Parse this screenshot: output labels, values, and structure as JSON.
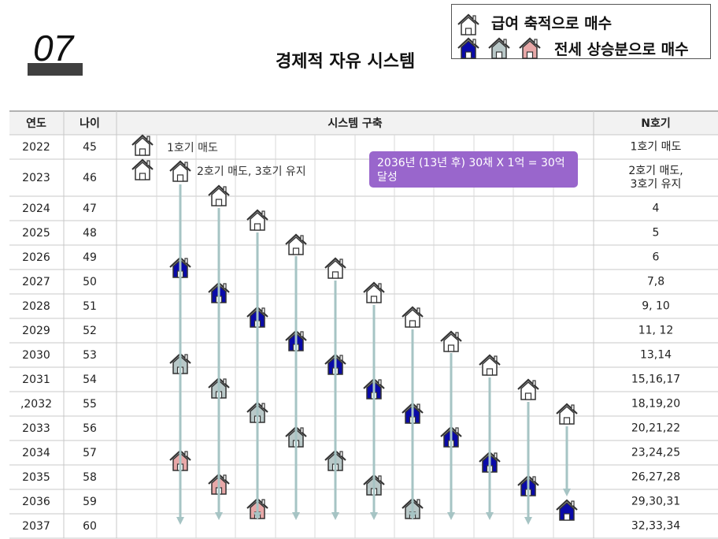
{
  "slide_number": "07",
  "title": "경제적 자유 시스템",
  "legend": {
    "salary_label": "급여 축적으로 매수",
    "jeonse_label": "전세 상승분으로 매수"
  },
  "table": {
    "headers": {
      "year": "연도",
      "age": "나이",
      "system": "시스템 구축",
      "n": "N호기"
    },
    "rows": [
      {
        "year": "2022",
        "age": "45",
        "n": "1호기 매도"
      },
      {
        "year": "2023",
        "age": "46",
        "n": "2호기 매도,\n3호기 유지"
      },
      {
        "year": "2024",
        "age": "47",
        "n": "4"
      },
      {
        "year": "2025",
        "age": "48",
        "n": "5"
      },
      {
        "year": "2026",
        "age": "49",
        "n": "6"
      },
      {
        "year": "2027",
        "age": "50",
        "n": "7,8"
      },
      {
        "year": "2028",
        "age": "51",
        "n": "9, 10"
      },
      {
        "year": "2029",
        "age": "52",
        "n": "11, 12"
      },
      {
        "year": "2030",
        "age": "53",
        "n": "13,14"
      },
      {
        "year": "2031",
        "age": "54",
        "n": "15,16,17"
      },
      {
        "year": ",2032",
        "age": "55",
        "n": "18,19,20"
      },
      {
        "year": "2033",
        "age": "56",
        "n": "20,21,22"
      },
      {
        "year": "2034",
        "age": "57",
        "n": "23,24,25"
      },
      {
        "year": "2035",
        "age": "58",
        "n": "26,27,28"
      },
      {
        "year": "2036",
        "age": "59",
        "n": "29,30,31"
      },
      {
        "year": "2037",
        "age": "60",
        "n": "32,33,34"
      }
    ]
  },
  "row_labels": {
    "r2022": "1호기 매도",
    "r2023": "2호기 매도, 3호기 유지"
  },
  "callout": "2036년 (13년  후) 30채 X 1억 = 30억 달성",
  "colors": {
    "white_house": "#ffffff",
    "blue_house": "#0a0aa8",
    "gray_house": "#b9c8c8",
    "pink_house": "#e8a8a8",
    "arrow": "#a6c4c4",
    "callout_bg": "#9966cc"
  },
  "icons": {
    "house": "house-icon"
  }
}
